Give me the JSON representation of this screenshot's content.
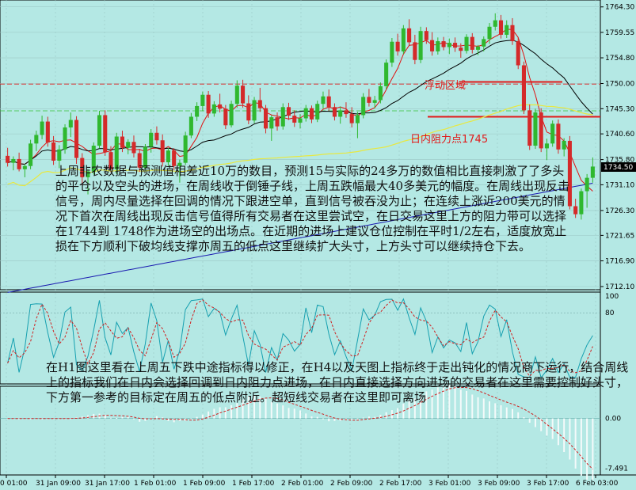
{
  "chart_data": [
    {
      "type": "candlestick",
      "panel": "price",
      "y_ticks": [
        1764.3,
        1759.55,
        1754.8,
        1750.0,
        1745.3,
        1740.6,
        1735.8,
        1731.1,
        1726.3,
        1721.65,
        1716.9,
        1712.1
      ],
      "ylim": [
        1712.1,
        1765.0
      ],
      "current_price": "1734.50",
      "x_ticks": [
        "0 01:00",
        "31 Jan 09:00",
        "31 Jan 17:00",
        "1 Feb 01:00",
        "1 Feb 09:00",
        "1 Feb 17:00",
        "2 Feb 01:00",
        "2 Feb 09:00",
        "2 Feb 17:00",
        "3 Feb 01:00",
        "3 Feb 09:00",
        "3 Feb 17:00",
        "6 Feb 03:00"
      ],
      "candles": [
        [
          1736.5,
          1738.0,
          1734.5,
          1735.2
        ],
        [
          1735.2,
          1736.4,
          1733.8,
          1735.9
        ],
        [
          1735.9,
          1737.1,
          1733.6,
          1734.0
        ],
        [
          1734.0,
          1735.0,
          1732.5,
          1734.6
        ],
        [
          1734.6,
          1739.5,
          1734.0,
          1738.8
        ],
        [
          1738.8,
          1741.2,
          1737.4,
          1740.4
        ],
        [
          1740.4,
          1744.0,
          1739.6,
          1742.9
        ],
        [
          1742.9,
          1743.8,
          1738.2,
          1739.0
        ],
        [
          1739.0,
          1740.2,
          1734.8,
          1735.6
        ],
        [
          1735.6,
          1738.5,
          1734.2,
          1737.7
        ],
        [
          1737.7,
          1742.4,
          1736.9,
          1741.8
        ],
        [
          1741.8,
          1744.6,
          1740.0,
          1743.2
        ],
        [
          1743.2,
          1743.9,
          1735.0,
          1736.1
        ],
        [
          1736.1,
          1737.0,
          1731.0,
          1732.5
        ],
        [
          1732.5,
          1734.0,
          1729.3,
          1733.6
        ],
        [
          1733.6,
          1739.0,
          1733.0,
          1738.4
        ],
        [
          1738.4,
          1744.9,
          1737.9,
          1744.1
        ],
        [
          1744.1,
          1745.0,
          1736.5,
          1737.2
        ],
        [
          1737.2,
          1738.3,
          1733.4,
          1734.0
        ],
        [
          1734.0,
          1740.8,
          1733.1,
          1740.1
        ],
        [
          1740.1,
          1741.2,
          1737.2,
          1738.0
        ],
        [
          1738.0,
          1739.6,
          1736.8,
          1739.1
        ],
        [
          1739.1,
          1740.3,
          1736.2,
          1737.0
        ],
        [
          1737.0,
          1737.8,
          1733.5,
          1734.3
        ],
        [
          1734.3,
          1738.7,
          1733.7,
          1738.2
        ],
        [
          1738.2,
          1741.5,
          1737.1,
          1740.8
        ],
        [
          1740.8,
          1742.0,
          1738.6,
          1739.4
        ],
        [
          1739.4,
          1740.5,
          1734.5,
          1735.3
        ],
        [
          1735.3,
          1738.0,
          1734.6,
          1737.5
        ],
        [
          1737.5,
          1737.9,
          1733.8,
          1734.6
        ],
        [
          1734.6,
          1735.8,
          1731.5,
          1735.2
        ],
        [
          1735.2,
          1741.0,
          1734.8,
          1740.3
        ],
        [
          1740.3,
          1744.5,
          1739.8,
          1743.8
        ],
        [
          1743.8,
          1746.5,
          1743.0,
          1745.8
        ],
        [
          1745.8,
          1748.5,
          1744.9,
          1747.9
        ],
        [
          1747.9,
          1748.6,
          1743.6,
          1744.4
        ],
        [
          1744.4,
          1746.7,
          1743.8,
          1746.1
        ],
        [
          1746.1,
          1748.1,
          1744.6,
          1745.3
        ],
        [
          1745.3,
          1746.0,
          1741.5,
          1742.2
        ],
        [
          1742.2,
          1746.8,
          1741.8,
          1746.2
        ],
        [
          1746.2,
          1750.6,
          1745.5,
          1749.6
        ],
        [
          1749.6,
          1750.7,
          1745.5,
          1746.3
        ],
        [
          1746.3,
          1747.8,
          1742.4,
          1743.1
        ],
        [
          1743.1,
          1747.5,
          1742.6,
          1746.9
        ],
        [
          1746.9,
          1749.2,
          1744.7,
          1745.4
        ],
        [
          1745.4,
          1746.0,
          1740.7,
          1741.6
        ],
        [
          1741.6,
          1744.1,
          1739.3,
          1743.7
        ],
        [
          1743.7,
          1744.6,
          1741.2,
          1742.0
        ],
        [
          1742.0,
          1746.3,
          1741.4,
          1745.6
        ],
        [
          1745.6,
          1746.4,
          1743.2,
          1744.0
        ],
        [
          1744.0,
          1745.0,
          1741.9,
          1742.7
        ],
        [
          1742.7,
          1744.3,
          1741.6,
          1743.5
        ],
        [
          1743.5,
          1746.0,
          1742.9,
          1745.4
        ],
        [
          1745.4,
          1745.9,
          1742.6,
          1743.3
        ],
        [
          1743.3,
          1746.8,
          1742.8,
          1746.2
        ],
        [
          1746.2,
          1748.5,
          1745.3,
          1747.6
        ],
        [
          1747.6,
          1748.9,
          1744.9,
          1745.6
        ],
        [
          1745.6,
          1746.3,
          1743.1,
          1743.8
        ],
        [
          1743.8,
          1745.7,
          1742.5,
          1745.0
        ],
        [
          1745.0,
          1746.5,
          1743.6,
          1744.3
        ],
        [
          1744.3,
          1745.6,
          1741.8,
          1742.6
        ],
        [
          1742.6,
          1744.7,
          1739.8,
          1744.1
        ],
        [
          1744.1,
          1748.2,
          1743.5,
          1747.5
        ],
        [
          1747.5,
          1749.0,
          1745.7,
          1746.4
        ],
        [
          1746.4,
          1747.7,
          1745.4,
          1746.9
        ],
        [
          1746.9,
          1750.2,
          1746.3,
          1749.5
        ],
        [
          1749.5,
          1754.5,
          1748.9,
          1753.9
        ],
        [
          1753.9,
          1758.5,
          1753.1,
          1757.8
        ],
        [
          1757.8,
          1759.3,
          1755.2,
          1756.0
        ],
        [
          1756.0,
          1760.9,
          1755.5,
          1760.3
        ],
        [
          1760.3,
          1762.0,
          1757.0,
          1757.7
        ],
        [
          1757.7,
          1759.1,
          1753.6,
          1754.4
        ],
        [
          1754.4,
          1760.6,
          1753.8,
          1759.8
        ],
        [
          1759.8,
          1760.5,
          1757.4,
          1758.1
        ],
        [
          1758.1,
          1759.6,
          1755.2,
          1756.0
        ],
        [
          1756.0,
          1758.6,
          1755.4,
          1757.9
        ],
        [
          1757.9,
          1758.7,
          1756.2,
          1756.8
        ],
        [
          1756.8,
          1758.4,
          1755.5,
          1757.6
        ],
        [
          1757.6,
          1758.6,
          1755.9,
          1756.7
        ],
        [
          1756.7,
          1757.5,
          1754.8,
          1756.1
        ],
        [
          1756.1,
          1759.2,
          1755.6,
          1758.7
        ],
        [
          1758.7,
          1759.4,
          1755.6,
          1756.3
        ],
        [
          1756.3,
          1757.2,
          1755.3,
          1756.9
        ],
        [
          1756.9,
          1758.8,
          1756.0,
          1758.3
        ],
        [
          1758.3,
          1761.3,
          1757.4,
          1760.6
        ],
        [
          1760.6,
          1763.1,
          1759.9,
          1761.8
        ],
        [
          1761.8,
          1762.8,
          1758.4,
          1759.1
        ],
        [
          1759.1,
          1761.8,
          1758.5,
          1760.9
        ],
        [
          1760.9,
          1762.2,
          1757.2,
          1757.9
        ],
        [
          1757.9,
          1758.6,
          1752.7,
          1753.4
        ],
        [
          1753.4,
          1754.1,
          1744.3,
          1745.0
        ],
        [
          1745.0,
          1746.1,
          1737.6,
          1738.4
        ],
        [
          1738.4,
          1745.3,
          1737.8,
          1744.6
        ],
        [
          1744.6,
          1745.4,
          1737.2,
          1737.9
        ],
        [
          1737.9,
          1739.7,
          1735.7,
          1738.8
        ],
        [
          1738.8,
          1743.1,
          1738.2,
          1742.5
        ],
        [
          1742.5,
          1743.3,
          1736.9,
          1737.7
        ],
        [
          1737.7,
          1739.8,
          1736.4,
          1739.3
        ],
        [
          1739.3,
          1740.2,
          1726.5,
          1727.1
        ],
        [
          1727.1,
          1728.5,
          1724.9,
          1725.6
        ],
        [
          1725.6,
          1730.4,
          1724.6,
          1729.9
        ],
        [
          1729.9,
          1733.1,
          1726.8,
          1732.4
        ],
        [
          1732.4,
          1736.2,
          1731.5,
          1734.5
        ]
      ],
      "lines": [
        {
          "color": "#e01010"
        },
        {
          "color": "#000000"
        },
        {
          "color": "#e8e840"
        },
        {
          "color": "#1a1ab0"
        }
      ],
      "annotations": [
        {
          "text": "浮动区域",
          "color": "#e21a1a"
        },
        {
          "text": "日内阻力点1745",
          "color": "#e21a1a"
        }
      ],
      "levels": [
        1744.9,
        1743.8,
        1749.9,
        1750.3
      ]
    },
    {
      "type": "line",
      "panel": "oscillator",
      "y_ticks": [
        "100",
        "80"
      ],
      "ylim": [
        0,
        100
      ]
    },
    {
      "type": "bar",
      "panel": "histogram",
      "y_ticks": [
        "0.00",
        "-7.491"
      ],
      "ylim": [
        -8,
        4
      ]
    }
  ],
  "notes": {
    "note1": "上周非农数据与预测值相差近10万的数目，预测15与实际的24多万的数值相比直接刺激了了多头的平仓以及空头的进场，在周线收于倒锤子线，上周五跌幅最大40多美元的幅度。在周线出现反击信号，周内尽量选择在回调的情况下跟进空单，直到信号被吞没为止；在连续上涨近200美元的情况下首次在周线出现反击信号值得所有交易者在这里尝试空，在日交易这里上方的阻力带可以选择在1744到 1748作为进场空的出场点。在近期的进场上建议仓位控制在平时1/2左右，适度放宽止损在下方顺利下破均线支撑亦周五的低点这里继续扩大头寸，上方头寸可以继续持仓下去。",
    "note2": "在H1图这里看在上周五下跌中途指标得以修正，在H4以及天图上指标终于走出钝化的情况商下运行，结合周线上的指标我们在日内会选择回调到日内阻力点进场，在日内直接选择方向进场的交易者在这里需要控制好头寸，下方第一参考的目标定在周五的低点附近。超短线交易者在这里即可离场"
  }
}
